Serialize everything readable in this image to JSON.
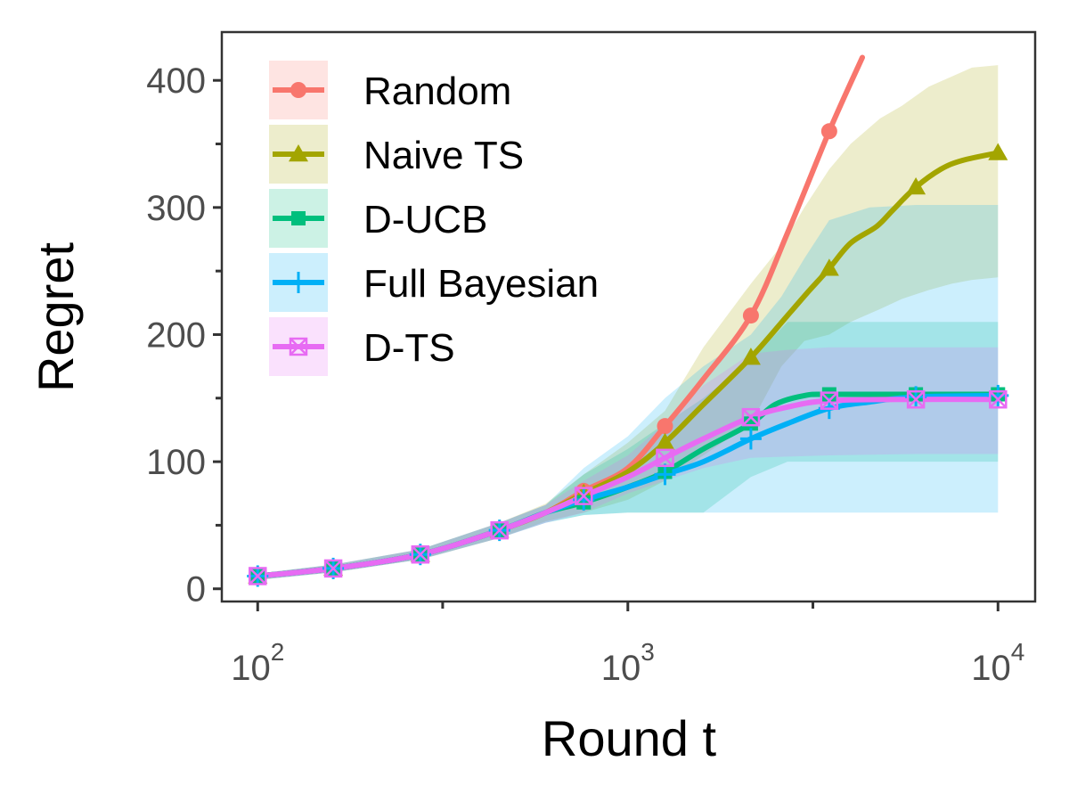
{
  "chart_data": {
    "type": "line",
    "x_scale": "log10",
    "xlabel": "Round t",
    "ylabel": "Regret",
    "xlim": [
      80,
      12600
    ],
    "ylim": [
      -10,
      438
    ],
    "x_ticks": [
      {
        "value": 100,
        "base": "10",
        "exp": "2"
      },
      {
        "value": 1000,
        "base": "10",
        "exp": "3"
      },
      {
        "value": 10000,
        "base": "10",
        "exp": "4"
      }
    ],
    "x_minor_ticks": [
      316,
      3162
    ],
    "y_ticks": [
      {
        "value": 0,
        "label": "0"
      },
      {
        "value": 100,
        "label": "100"
      },
      {
        "value": 200,
        "label": "200"
      },
      {
        "value": 300,
        "label": "300"
      },
      {
        "value": 400,
        "label": "400"
      }
    ],
    "y_minor_ticks": [
      50,
      150,
      250,
      350
    ],
    "legend_position": "top-left",
    "series": [
      {
        "name": "Random",
        "color": "#F8766D",
        "marker": "circle",
        "line": [
          [
            100,
            10
          ],
          [
            160,
            16
          ],
          [
            275,
            27
          ],
          [
            450,
            46
          ],
          [
            600,
            60
          ],
          [
            760,
            77
          ],
          [
            1000,
            95
          ],
          [
            1260,
            128
          ],
          [
            1600,
            165
          ],
          [
            2150,
            215
          ],
          [
            2700,
            280
          ],
          [
            3500,
            360
          ],
          [
            4300,
            418
          ]
        ],
        "points": [
          [
            100,
            10
          ],
          [
            160,
            16
          ],
          [
            275,
            27
          ],
          [
            450,
            46
          ],
          [
            760,
            77
          ],
          [
            1260,
            128
          ],
          [
            2150,
            215
          ],
          [
            3500,
            360
          ]
        ],
        "band": []
      },
      {
        "name": "Naive TS",
        "color": "#A3A500",
        "marker": "triangle",
        "line": [
          [
            100,
            10
          ],
          [
            160,
            16
          ],
          [
            275,
            27
          ],
          [
            450,
            46
          ],
          [
            600,
            60
          ],
          [
            760,
            75
          ],
          [
            1000,
            92
          ],
          [
            1260,
            115
          ],
          [
            1600,
            145
          ],
          [
            2150,
            182
          ],
          [
            2700,
            215
          ],
          [
            3100,
            235
          ],
          [
            3500,
            252
          ],
          [
            4000,
            272
          ],
          [
            4700,
            285
          ],
          [
            5200,
            298
          ],
          [
            6000,
            316
          ],
          [
            7000,
            330
          ],
          [
            8000,
            337
          ],
          [
            10000,
            343
          ]
        ],
        "points": [
          [
            100,
            10
          ],
          [
            160,
            16
          ],
          [
            275,
            27
          ],
          [
            450,
            46
          ],
          [
            760,
            75
          ],
          [
            1260,
            115
          ],
          [
            2150,
            182
          ],
          [
            3500,
            252
          ],
          [
            6000,
            316
          ],
          [
            10000,
            343
          ]
        ],
        "band": [
          [
            100,
            7,
            12
          ],
          [
            160,
            13,
            19
          ],
          [
            275,
            23,
            31
          ],
          [
            450,
            40,
            52
          ],
          [
            600,
            53,
            67
          ],
          [
            760,
            60,
            90
          ],
          [
            1000,
            70,
            115
          ],
          [
            1260,
            85,
            140
          ],
          [
            1600,
            105,
            190
          ],
          [
            2150,
            130,
            240
          ],
          [
            2600,
            175,
            270
          ],
          [
            3000,
            195,
            300
          ],
          [
            3500,
            200,
            330
          ],
          [
            4000,
            210,
            350
          ],
          [
            4800,
            220,
            370
          ],
          [
            5500,
            228,
            380
          ],
          [
            6500,
            235,
            395
          ],
          [
            7500,
            240,
            403
          ],
          [
            8500,
            243,
            410
          ],
          [
            10000,
            245,
            412
          ]
        ]
      },
      {
        "name": "D-UCB",
        "color": "#00BF7D",
        "marker": "square",
        "line": [
          [
            100,
            10
          ],
          [
            160,
            16
          ],
          [
            275,
            27
          ],
          [
            450,
            46
          ],
          [
            600,
            60
          ],
          [
            760,
            68
          ],
          [
            1000,
            80
          ],
          [
            1260,
            92
          ],
          [
            1600,
            110
          ],
          [
            2150,
            130
          ],
          [
            2500,
            145
          ],
          [
            3000,
            152
          ],
          [
            3500,
            153
          ],
          [
            6000,
            153
          ],
          [
            10000,
            153
          ]
        ],
        "points": [
          [
            100,
            10
          ],
          [
            160,
            16
          ],
          [
            275,
            27
          ],
          [
            450,
            46
          ],
          [
            760,
            68
          ],
          [
            1260,
            92
          ],
          [
            2150,
            130
          ],
          [
            3500,
            153
          ],
          [
            6000,
            153
          ],
          [
            10000,
            153
          ]
        ],
        "band": [
          [
            100,
            7,
            12
          ],
          [
            160,
            13,
            19
          ],
          [
            275,
            23,
            31
          ],
          [
            450,
            40,
            52
          ],
          [
            600,
            52,
            66
          ],
          [
            760,
            58,
            90
          ],
          [
            1000,
            60,
            110
          ],
          [
            1260,
            60,
            130
          ],
          [
            1600,
            60,
            150
          ],
          [
            2150,
            88,
            180
          ],
          [
            2700,
            100,
            210
          ],
          [
            3200,
            100,
            210
          ],
          [
            4000,
            100,
            210
          ],
          [
            6000,
            100,
            210
          ],
          [
            10000,
            100,
            210
          ]
        ]
      },
      {
        "name": "Full Bayesian",
        "color": "#00B0F6",
        "marker": "plus",
        "line": [
          [
            100,
            10
          ],
          [
            160,
            16
          ],
          [
            275,
            27
          ],
          [
            450,
            46
          ],
          [
            600,
            60
          ],
          [
            760,
            70
          ],
          [
            1000,
            80
          ],
          [
            1260,
            90
          ],
          [
            1600,
            100
          ],
          [
            2150,
            118
          ],
          [
            2700,
            130
          ],
          [
            3500,
            142
          ],
          [
            4500,
            147
          ],
          [
            6000,
            151
          ],
          [
            10000,
            152
          ]
        ],
        "points": [
          [
            100,
            10
          ],
          [
            160,
            16
          ],
          [
            275,
            27
          ],
          [
            450,
            46
          ],
          [
            760,
            70
          ],
          [
            1260,
            90
          ],
          [
            2150,
            118
          ],
          [
            3500,
            142
          ],
          [
            6000,
            151
          ],
          [
            10000,
            152
          ]
        ],
        "band": [
          [
            100,
            7,
            12
          ],
          [
            160,
            13,
            19
          ],
          [
            275,
            23,
            31
          ],
          [
            450,
            40,
            52
          ],
          [
            600,
            52,
            66
          ],
          [
            760,
            58,
            95
          ],
          [
            1000,
            60,
            120
          ],
          [
            1260,
            60,
            150
          ],
          [
            1600,
            60,
            175
          ],
          [
            2150,
            60,
            200
          ],
          [
            2600,
            60,
            230
          ],
          [
            3000,
            60,
            260
          ],
          [
            3500,
            60,
            290
          ],
          [
            4500,
            60,
            300
          ],
          [
            6000,
            60,
            302
          ],
          [
            10000,
            60,
            302
          ]
        ]
      },
      {
        "name": "D-TS",
        "color": "#E76BF3",
        "marker": "boxcross",
        "line": [
          [
            100,
            10
          ],
          [
            160,
            16
          ],
          [
            275,
            27
          ],
          [
            450,
            46
          ],
          [
            600,
            60
          ],
          [
            760,
            73
          ],
          [
            1000,
            88
          ],
          [
            1260,
            103
          ],
          [
            1600,
            118
          ],
          [
            2150,
            135
          ],
          [
            2700,
            143
          ],
          [
            3500,
            148
          ],
          [
            6000,
            149
          ],
          [
            10000,
            149
          ]
        ],
        "points": [
          [
            100,
            10
          ],
          [
            160,
            16
          ],
          [
            275,
            27
          ],
          [
            450,
            46
          ],
          [
            760,
            73
          ],
          [
            1260,
            103
          ],
          [
            2150,
            135
          ],
          [
            3500,
            148
          ],
          [
            6000,
            149
          ],
          [
            10000,
            149
          ]
        ],
        "band": [
          [
            100,
            7,
            12
          ],
          [
            160,
            13,
            19
          ],
          [
            275,
            23,
            31
          ],
          [
            450,
            40,
            52
          ],
          [
            600,
            52,
            66
          ],
          [
            760,
            60,
            85
          ],
          [
            1000,
            75,
            105
          ],
          [
            1260,
            85,
            130
          ],
          [
            1600,
            95,
            160
          ],
          [
            2150,
            103,
            185
          ],
          [
            2700,
            104,
            188
          ],
          [
            3500,
            105,
            190
          ],
          [
            6000,
            106,
            190
          ],
          [
            10000,
            106,
            190
          ]
        ]
      }
    ]
  }
}
